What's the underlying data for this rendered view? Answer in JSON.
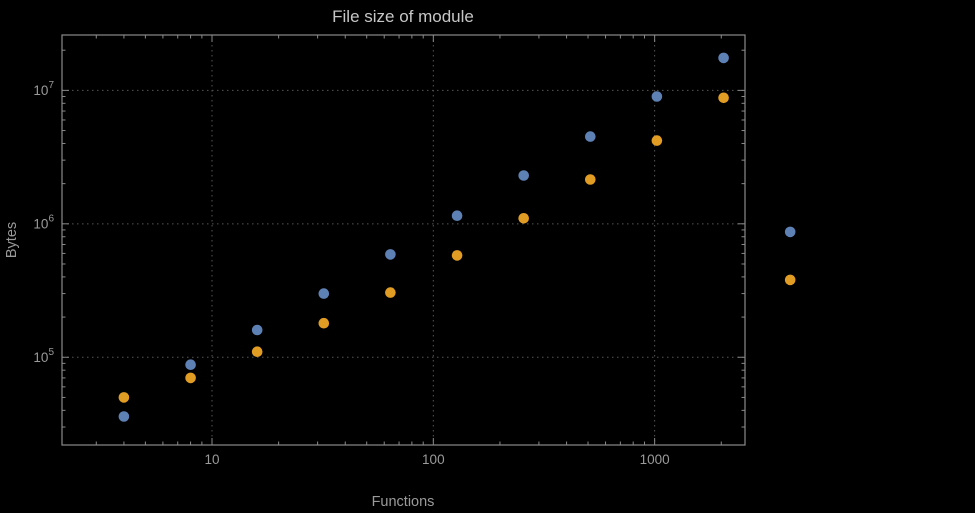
{
  "page": {
    "background_color": "#000000"
  },
  "chart_data": {
    "type": "scatter",
    "title": "File size of module",
    "xlabel": "Functions",
    "ylabel": "Bytes",
    "x_scale": "log",
    "y_scale": "log",
    "x_range": [
      2.1,
      2560
    ],
    "y_range": [
      22000,
      26000000
    ],
    "grid": "dotted at major ticks",
    "legend": "none",
    "x_major_ticks": [
      10,
      100,
      1000
    ],
    "x_tick_labels": [
      "10",
      "100",
      "1000"
    ],
    "y_major_ticks": [
      100000,
      1000000,
      10000000
    ],
    "y_tick_base": "10",
    "y_tick_exponents": [
      "5",
      "6",
      "7"
    ],
    "series": [
      {
        "name": "blue-series",
        "color": "#5E81B5",
        "x": [
          4,
          8,
          16,
          32,
          64,
          128,
          256,
          512,
          1024,
          2048,
          4096
        ],
        "y": [
          36000,
          88000,
          160000,
          300000,
          590000,
          1150000,
          2300000,
          4500000,
          9000000,
          17500000,
          870000
        ]
      },
      {
        "name": "orange-series",
        "color": "#E19C24",
        "x": [
          4,
          8,
          16,
          32,
          64,
          128,
          256,
          512,
          1024,
          2048,
          4096
        ],
        "y": [
          50000,
          70000,
          110000,
          180000,
          305000,
          580000,
          1100000,
          2150000,
          4200000,
          8800000,
          380000
        ]
      }
    ],
    "colors": {
      "frame": "#8a8a8a",
      "grid": "#565656",
      "tick_text": "#9a9a9a",
      "axis_text": "#9a9a9a",
      "title_text": "#c6c6c6"
    }
  }
}
